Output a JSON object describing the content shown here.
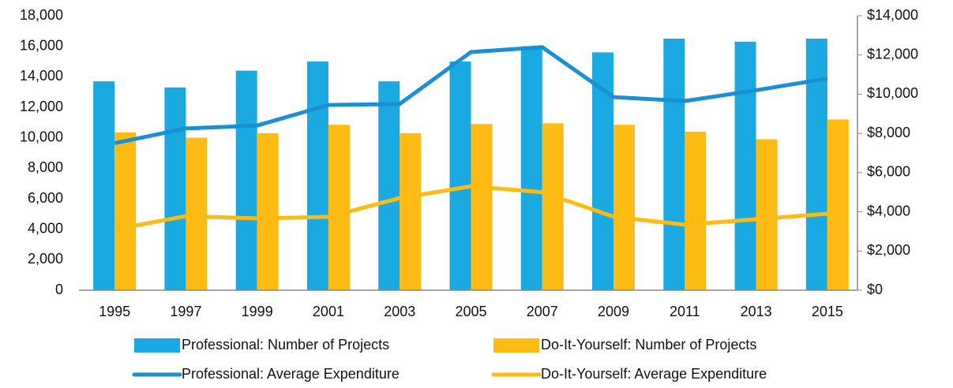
{
  "chart_data": {
    "type": "bar",
    "categories": [
      "1995",
      "1997",
      "1999",
      "2001",
      "2003",
      "2005",
      "2007",
      "2009",
      "2011",
      "2013",
      "2015"
    ],
    "series": [
      {
        "name": "Professional: Number of Projects",
        "type": "bar",
        "color": "#1aa9e0",
        "values": [
          13700,
          13300,
          14400,
          15000,
          13700,
          15000,
          16000,
          15600,
          16500,
          16300,
          16500
        ]
      },
      {
        "name": "Do-It-Yourself: Number of Projects",
        "type": "bar",
        "color": "#fdbb13",
        "values": [
          10350,
          10000,
          10300,
          10850,
          10300,
          10900,
          10950,
          10850,
          10400,
          9900,
          11200
        ]
      },
      {
        "name": "Professional: Average Expenditure",
        "type": "line",
        "axis": "y2",
        "color": "#1b8fd4",
        "values": [
          7500,
          8250,
          8400,
          9450,
          9500,
          12150,
          12400,
          9850,
          9650,
          10200,
          10800
        ]
      },
      {
        "name": "Do-It-Yourself: Average Expenditure",
        "type": "line",
        "axis": "y2",
        "color": "#fdbb13",
        "values": [
          3100,
          3780,
          3660,
          3740,
          4700,
          5300,
          5000,
          3750,
          3340,
          3620,
          3900
        ]
      }
    ],
    "ylim": [
      0,
      18000
    ],
    "yticks": [
      0,
      {
        "value": 2000,
        "label": "2,000"
      },
      {
        "value": 4000,
        "label": "4,000"
      },
      {
        "value": 6000,
        "label": "6,000"
      },
      {
        "value": 8000,
        "label": "8,000"
      },
      {
        "value": 10000,
        "label": "10,000"
      },
      {
        "value": 12000,
        "label": "12,000"
      },
      {
        "value": 14000,
        "label": "14,000"
      },
      {
        "value": 16000,
        "label": "16,000"
      },
      {
        "value": 18000,
        "label": "18,000"
      }
    ],
    "y2lim": [
      0,
      14000
    ],
    "y2ticks": [
      {
        "value": 0,
        "label": "$0"
      },
      {
        "value": 2000,
        "label": "$2,000"
      },
      {
        "value": 4000,
        "label": "$4,000"
      },
      {
        "value": 6000,
        "label": "$6,000"
      },
      {
        "value": 8000,
        "label": "$8,000"
      },
      {
        "value": 10000,
        "label": "$10,000"
      },
      {
        "value": 12000,
        "label": "$12,000"
      },
      {
        "value": 14000,
        "label": "$14,000"
      }
    ],
    "grid": false,
    "legend": "bottom"
  }
}
